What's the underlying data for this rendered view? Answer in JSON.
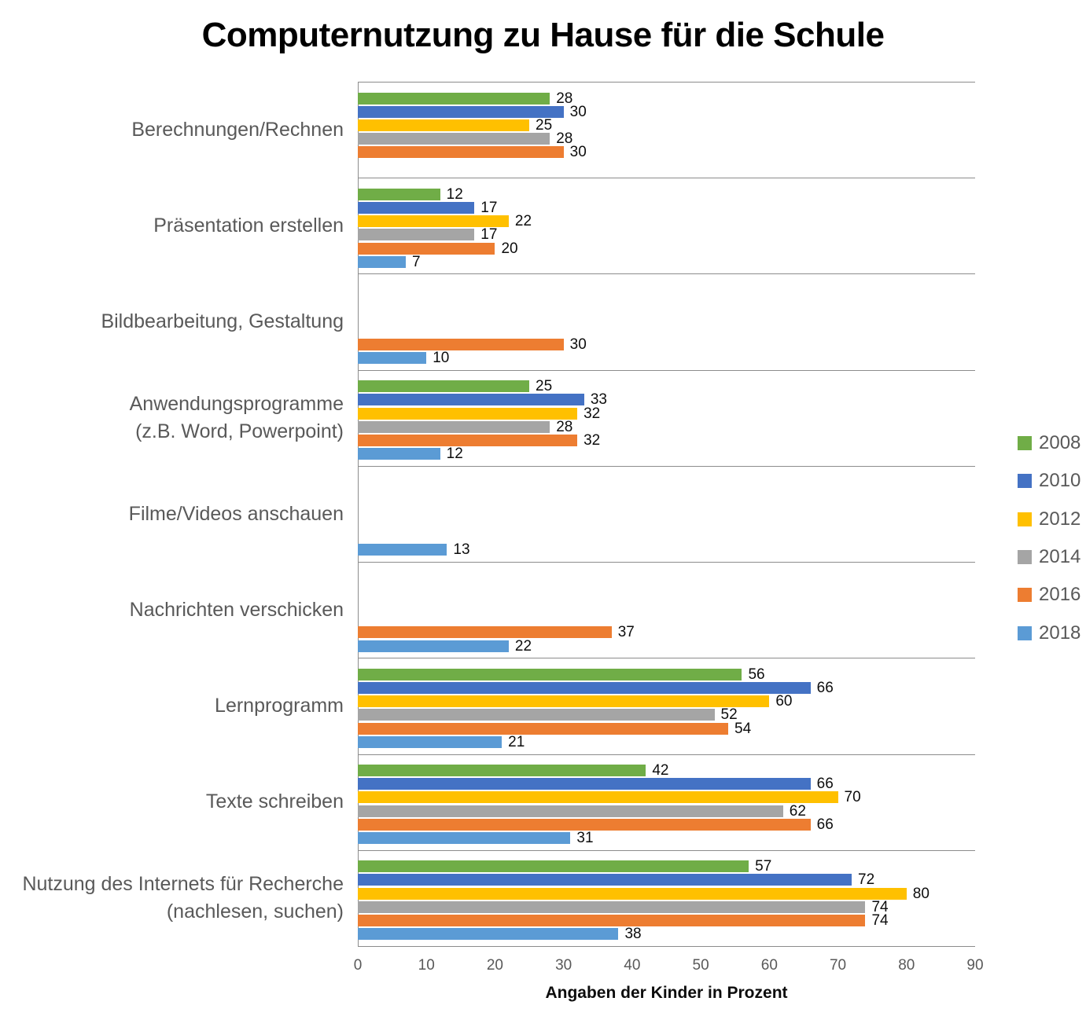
{
  "title": "Computernutzung zu Hause für die Schule",
  "chart_data": {
    "type": "bar",
    "orientation": "horizontal",
    "title": "Computernutzung zu Hause für die Schule",
    "categories": [
      "Berechnungen/Rechnen",
      "Präsentation erstellen",
      "Bildbearbeitung, Gestaltung",
      "Anwendungsprogramme\n(z.B. Word, Powerpoint)",
      "Filme/Videos anschauen",
      "Nachrichten verschicken",
      "Lernprogramm",
      "Texte schreiben",
      "Nutzung des Internets für Recherche\n(nachlesen, suchen)"
    ],
    "series": [
      {
        "name": "2008",
        "color": "#70AD47",
        "values": [
          28,
          12,
          null,
          25,
          null,
          null,
          56,
          42,
          57
        ]
      },
      {
        "name": "2010",
        "color": "#4472C4",
        "values": [
          30,
          17,
          null,
          33,
          null,
          null,
          66,
          66,
          72
        ]
      },
      {
        "name": "2012",
        "color": "#FFC000",
        "values": [
          25,
          22,
          null,
          32,
          null,
          null,
          60,
          70,
          80
        ]
      },
      {
        "name": "2014",
        "color": "#A5A5A5",
        "values": [
          28,
          17,
          null,
          28,
          null,
          null,
          52,
          62,
          74
        ]
      },
      {
        "name": "2016",
        "color": "#ED7D31",
        "values": [
          30,
          20,
          30,
          32,
          null,
          37,
          54,
          66,
          74
        ]
      },
      {
        "name": "2018",
        "color": "#5B9BD5",
        "values": [
          null,
          7,
          10,
          12,
          13,
          22,
          21,
          31,
          38
        ]
      }
    ],
    "xlabel": "Angaben der Kinder in Prozent",
    "x_ticks": [
      0,
      10,
      20,
      30,
      40,
      50,
      60,
      70,
      80,
      90
    ],
    "xlim": [
      0,
      90
    ],
    "value_labels": true,
    "grid": "category-dividers-only",
    "legend_position": "right",
    "tick_color": "#595959",
    "label_color": "#595959",
    "gridline_color": "#8c8c8c"
  }
}
